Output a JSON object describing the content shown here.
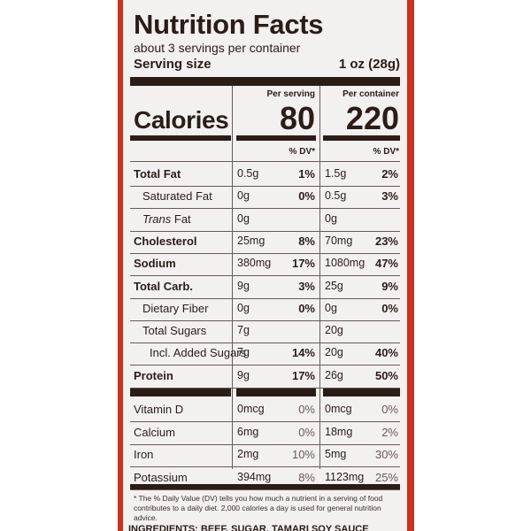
{
  "title": "Nutrition Facts",
  "servings_per_container": "about 3 servings per container",
  "serving_size": {
    "label": "Serving size",
    "value": "1 oz (28g)"
  },
  "headers": {
    "per_serving": "Per serving",
    "per_container": "Per container",
    "dv": "% DV*"
  },
  "calories": {
    "label": "Calories",
    "per_serving": "80",
    "per_container": "220"
  },
  "nutrients": [
    {
      "name": "Total Fat",
      "style": "bold",
      "s_amt": "0.5g",
      "s_pct": "1%",
      "c_amt": "1.5g",
      "c_pct": "2%"
    },
    {
      "name": "Saturated Fat",
      "style": "indent",
      "s_amt": "0g",
      "s_pct": "0%",
      "c_amt": "0.5g",
      "c_pct": "3%"
    },
    {
      "name_italic": "Trans",
      "name": " Fat",
      "style": "indent",
      "s_amt": "0g",
      "s_pct": "",
      "c_amt": "0g",
      "c_pct": ""
    },
    {
      "name": "Cholesterol",
      "style": "bold",
      "s_amt": "25mg",
      "s_pct": "8%",
      "c_amt": "70mg",
      "c_pct": "23%"
    },
    {
      "name": "Sodium",
      "style": "bold",
      "s_amt": "380mg",
      "s_pct": "17%",
      "c_amt": "1080mg",
      "c_pct": "47%"
    },
    {
      "name": "Total Carb.",
      "style": "bold",
      "s_amt": "9g",
      "s_pct": "3%",
      "c_amt": "25g",
      "c_pct": "9%"
    },
    {
      "name": "Dietary Fiber",
      "style": "indent",
      "s_amt": "0g",
      "s_pct": "0%",
      "c_amt": "0g",
      "c_pct": "0%"
    },
    {
      "name": "Total Sugars",
      "style": "indent",
      "s_amt": "7g",
      "s_pct": "",
      "c_amt": "20g",
      "c_pct": ""
    },
    {
      "name": "Incl. Added Sugars",
      "style": "indent2",
      "s_amt": "7g",
      "s_pct": "14%",
      "c_amt": "20g",
      "c_pct": "40%"
    },
    {
      "name": "Protein",
      "style": "bold",
      "s_amt": "9g",
      "s_pct": "17%",
      "c_amt": "26g",
      "c_pct": "50%"
    }
  ],
  "vitamins": [
    {
      "name": "Vitamin D",
      "s_amt": "0mcg",
      "s_pct": "0%",
      "c_amt": "0mcg",
      "c_pct": "0%"
    },
    {
      "name": "Calcium",
      "s_amt": "6mg",
      "s_pct": "0%",
      "c_amt": "18mg",
      "c_pct": "2%"
    },
    {
      "name": "Iron",
      "s_amt": "2mg",
      "s_pct": "10%",
      "c_amt": "5mg",
      "c_pct": "30%"
    },
    {
      "name": "Potassium",
      "s_amt": "394mg",
      "s_pct": "8%",
      "c_amt": "1123mg",
      "c_pct": "25%"
    }
  ],
  "footnote": "* The % Daily Value (DV) tells you how much a nutrient in a serving of food contributes to a daily diet. 2,000 calories a day is used for general nutrition advice.",
  "ingredients": "INGREDIENTS: BEEF, SUGAR, TAMARI SOY SAUCE",
  "colors": {
    "packaging_red": "#c8321e",
    "ink": "#2a1d18",
    "label_bg": "#f3f0f0"
  }
}
